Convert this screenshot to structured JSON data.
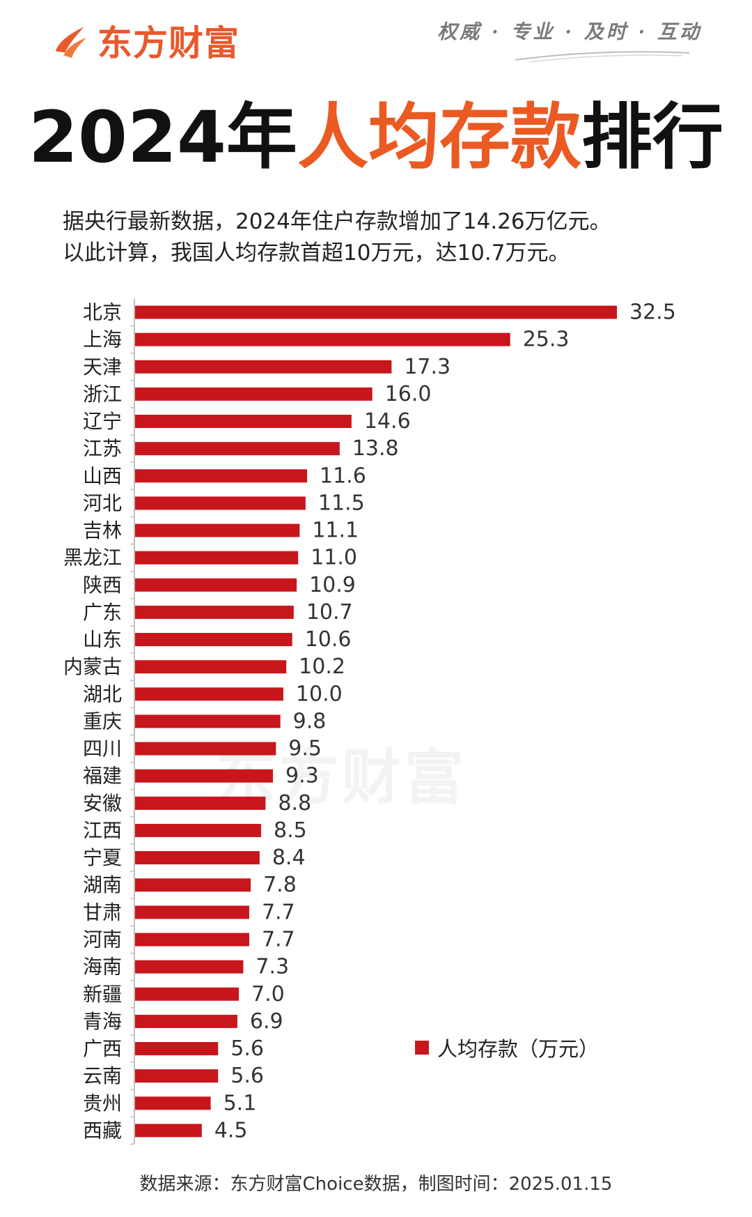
{
  "brand": {
    "logo_text": "东方财富",
    "slogan": "权威 · 专业 · 及时 · 互动",
    "accent_color": "#e8592c"
  },
  "title": {
    "prefix": "2024年",
    "highlight": "人均存款",
    "suffix": "排行"
  },
  "intro": {
    "line1": "据央行最新数据，2024年住户存款增加了14.26万亿元。",
    "line2": "以此计算，我国人均存款首超10万元，达10.7万元。"
  },
  "watermark": "东方财富",
  "legend_label": "人均存款（万元）",
  "source": "数据来源：东方财富Choice数据，制图时间：2025.01.15",
  "chart_data": {
    "type": "bar",
    "orientation": "horizontal",
    "bar_color": "#c8161d",
    "categories": [
      "北京",
      "上海",
      "天津",
      "浙江",
      "辽宁",
      "江苏",
      "山西",
      "河北",
      "吉林",
      "黑龙江",
      "陕西",
      "广东",
      "山东",
      "内蒙古",
      "湖北",
      "重庆",
      "四川",
      "福建",
      "安徽",
      "江西",
      "宁夏",
      "湖南",
      "甘肃",
      "河南",
      "海南",
      "新疆",
      "青海",
      "广西",
      "云南",
      "贵州",
      "西藏"
    ],
    "series": [
      {
        "name": "人均存款（万元）",
        "values": [
          32.5,
          25.3,
          17.3,
          16.0,
          14.6,
          13.8,
          11.6,
          11.5,
          11.1,
          11.0,
          10.9,
          10.7,
          10.6,
          10.2,
          10.0,
          9.8,
          9.5,
          9.3,
          8.8,
          8.5,
          8.4,
          7.8,
          7.7,
          7.7,
          7.3,
          7.0,
          6.9,
          5.6,
          5.6,
          5.1,
          4.5
        ]
      }
    ],
    "value_labels": [
      "32.5",
      "25.3",
      "17.3",
      "16.0",
      "14.6",
      "13.8",
      "11.6",
      "11.5",
      "11.1",
      "11.0",
      "10.9",
      "10.7",
      "10.6",
      "10.2",
      "10.0",
      "9.8",
      "9.5",
      "9.3",
      "8.8",
      "8.5",
      "8.4",
      "7.8",
      "7.7",
      "7.7",
      "7.3",
      "7.0",
      "6.9",
      "5.6",
      "5.6",
      "5.1",
      "4.5"
    ],
    "xlim": [
      0,
      32.5
    ],
    "grid": false,
    "legend_position": "bottom-right"
  }
}
